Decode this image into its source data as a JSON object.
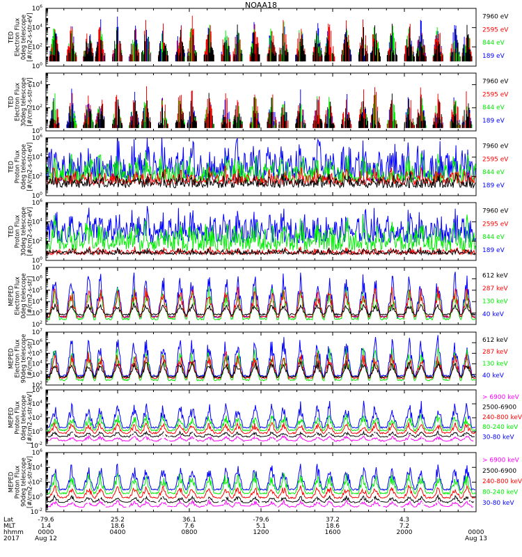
{
  "title": "NOAA18",
  "colors": {
    "black": "#000000",
    "red": "#ff0000",
    "green": "#00ee00",
    "blue": "#0000ff",
    "magenta": "#ff00ff"
  },
  "chart_data": [
    {
      "type": "line",
      "ylabel_lines": [
        "TED",
        "Electron Flux",
        "0deg telescope",
        "[#/cm2-s-str-eV]"
      ],
      "y_scale": "log",
      "ylim": [
        1,
        1000000
      ],
      "ytick_exponents": [
        0,
        2,
        4,
        6
      ],
      "legend": [
        {
          "text": "7960 eV",
          "color": "#000000"
        },
        {
          "text": "2595 eV",
          "color": "#ff0000"
        },
        {
          "text": "844 eV",
          "color": "#00ee00"
        },
        {
          "text": "189 eV",
          "color": "#0000ff"
        }
      ],
      "series": [
        {
          "color": "#0000ff",
          "base": 1,
          "amp": 4.2
        },
        {
          "color": "#00ee00",
          "base": 1,
          "amp": 4.0
        },
        {
          "color": "#ff0000",
          "base": 1,
          "amp": 4.6
        },
        {
          "color": "#000000",
          "base": 1,
          "amp": 3.6
        }
      ],
      "mode": "sparse"
    },
    {
      "type": "line",
      "ylabel_lines": [
        "TED",
        "Electron Flux",
        "30deg telescope",
        "[#/cm2-s-str-eV]"
      ],
      "y_scale": "log",
      "ylim": [
        1,
        100000
      ],
      "ytick_exponents": [
        0,
        2,
        4
      ],
      "legend": [
        {
          "text": "7960 eV",
          "color": "#000000"
        },
        {
          "text": "2595 eV",
          "color": "#ff0000"
        },
        {
          "text": "844 eV",
          "color": "#00ee00"
        },
        {
          "text": "189 eV",
          "color": "#0000ff"
        }
      ],
      "series": [
        {
          "color": "#0000ff",
          "base": 0.5,
          "amp": 3.2
        },
        {
          "color": "#00ee00",
          "base": 0.5,
          "amp": 3.0
        },
        {
          "color": "#ff0000",
          "base": 0.5,
          "amp": 3.8
        },
        {
          "color": "#000000",
          "base": 0.5,
          "amp": 2.8
        }
      ],
      "mode": "sparse"
    },
    {
      "type": "line",
      "ylabel_lines": [
        "TED",
        "Proton Flux",
        "0deg telescope",
        "[#/cm2-s-str-eV]"
      ],
      "y_scale": "log",
      "ylim": [
        1,
        1000000
      ],
      "ytick_exponents": [
        0,
        2,
        4,
        6
      ],
      "legend": [
        {
          "text": "7960 eV",
          "color": "#000000"
        },
        {
          "text": "2595 eV",
          "color": "#ff0000"
        },
        {
          "text": "844 eV",
          "color": "#00ee00"
        },
        {
          "text": "189 eV",
          "color": "#0000ff"
        }
      ],
      "series": [
        {
          "color": "#0000ff",
          "base": 1.5,
          "amp": 3.5
        },
        {
          "color": "#00ee00",
          "base": 1.3,
          "amp": 2.4
        },
        {
          "color": "#ff0000",
          "base": 1.1,
          "amp": 1.4
        },
        {
          "color": "#000000",
          "base": 0.8,
          "amp": 1.2
        }
      ],
      "mode": "dense"
    },
    {
      "type": "line",
      "ylabel_lines": [
        "TED",
        "Proton Flux",
        "30deg telescope",
        "[#/cm2-s-str-eV]"
      ],
      "y_scale": "log",
      "ylim": [
        1,
        1000000
      ],
      "ytick_exponents": [
        0,
        2,
        4,
        6
      ],
      "legend": [
        {
          "text": "7960 eV",
          "color": "#000000"
        },
        {
          "text": "2595 eV",
          "color": "#ff0000"
        },
        {
          "text": "844 eV",
          "color": "#00ee00"
        },
        {
          "text": "189 eV",
          "color": "#0000ff"
        }
      ],
      "series": [
        {
          "color": "#0000ff",
          "base": 1.8,
          "amp": 3.0
        },
        {
          "color": "#00ee00",
          "base": 1.0,
          "amp": 2.6
        },
        {
          "color": "#ff0000",
          "base": 0.6,
          "amp": 0.6
        },
        {
          "color": "#000000",
          "base": 0.6,
          "amp": 0.5
        }
      ],
      "mode": "dense"
    },
    {
      "type": "line",
      "ylabel_lines": [
        "MEPED",
        "Electron Flux",
        "0deg telescope",
        "[#/cm2-s-str]"
      ],
      "y_scale": "log",
      "ylim": [
        100,
        10000000
      ],
      "ytick_exponents": [
        2,
        3,
        4,
        5,
        6,
        7
      ],
      "legend": [
        {
          "text": "612 keV",
          "color": "#000000"
        },
        {
          "text": "287 keV",
          "color": "#ff0000"
        },
        {
          "text": "130 keV",
          "color": "#00ee00"
        },
        {
          "text": "40 keV",
          "color": "#0000ff"
        }
      ],
      "series": [
        {
          "color": "#0000ff",
          "base": 2.6,
          "amp": 4.2
        },
        {
          "color": "#00ee00",
          "base": 2.4,
          "amp": 3.0
        },
        {
          "color": "#ff0000",
          "base": 2.6,
          "amp": 2.8
        },
        {
          "color": "#000000",
          "base": 2.8,
          "amp": 1.0
        }
      ],
      "mode": "peaks"
    },
    {
      "type": "line",
      "ylabel_lines": [
        "MEPED",
        "Electron Flux",
        "90deg telescope",
        "[#/cm2-s-str]"
      ],
      "y_scale": "log",
      "ylim": [
        100,
        10000000
      ],
      "ytick_exponents": [
        2,
        3,
        4,
        5,
        6,
        7
      ],
      "legend": [
        {
          "text": "612 keV",
          "color": "#000000"
        },
        {
          "text": "287 keV",
          "color": "#ff0000"
        },
        {
          "text": "130 keV",
          "color": "#00ee00"
        },
        {
          "text": "40 keV",
          "color": "#0000ff"
        }
      ],
      "series": [
        {
          "color": "#0000ff",
          "base": 2.8,
          "amp": 4.0
        },
        {
          "color": "#00ee00",
          "base": 2.4,
          "amp": 3.2
        },
        {
          "color": "#ff0000",
          "base": 2.6,
          "amp": 2.6
        },
        {
          "color": "#000000",
          "base": 2.7,
          "amp": 1.6
        }
      ],
      "mode": "peaks"
    },
    {
      "type": "line",
      "ylabel_lines": [
        "MEPED",
        "Proton Flux",
        "0deg telescope",
        "[#/cm2-s-str-keV]"
      ],
      "y_scale": "log",
      "ylim": [
        0.01,
        1000000
      ],
      "ytick_exponents": [
        -2,
        0,
        2,
        4,
        6
      ],
      "legend": [
        {
          "text": "> 6900 keV",
          "color": "#ff00ff"
        },
        {
          "text": "2500-6900",
          "color": "#000000"
        },
        {
          "text": "240-800 keV",
          "color": "#ff0000"
        },
        {
          "text": "80-240 keV",
          "color": "#00ee00"
        },
        {
          "text": "30-80 keV",
          "color": "#0000ff"
        }
      ],
      "series": [
        {
          "color": "#0000ff",
          "base": 0.5,
          "amp": 4.0
        },
        {
          "color": "#00ee00",
          "base": 0.1,
          "amp": 2.6
        },
        {
          "color": "#ff0000",
          "base": -0.3,
          "amp": 1.6
        },
        {
          "color": "#000000",
          "base": -0.8,
          "amp": 0.8
        },
        {
          "color": "#ff00ff",
          "base": -1.4,
          "amp": 0.8
        }
      ],
      "mode": "proton"
    },
    {
      "type": "line",
      "ylabel_lines": [
        "MEPED",
        "Proton Flux",
        "90deg telescope",
        "[#/cm2-s-str-keV]"
      ],
      "y_scale": "log",
      "ylim": [
        0.01,
        1000000
      ],
      "ytick_exponents": [
        -2,
        0,
        2,
        4,
        6
      ],
      "legend": [
        {
          "text": "> 6900 keV",
          "color": "#ff00ff"
        },
        {
          "text": "2500-6900",
          "color": "#000000"
        },
        {
          "text": "240-800 keV",
          "color": "#ff0000"
        },
        {
          "text": "80-240 keV",
          "color": "#00ee00"
        },
        {
          "text": "30-80 keV",
          "color": "#0000ff"
        }
      ],
      "series": [
        {
          "color": "#0000ff",
          "base": 0.9,
          "amp": 3.8
        },
        {
          "color": "#00ee00",
          "base": 0.4,
          "amp": 3.0
        },
        {
          "color": "#ff0000",
          "base": -0.2,
          "amp": 1.8
        },
        {
          "color": "#000000",
          "base": -0.8,
          "amp": 0.9
        },
        {
          "color": "#ff00ff",
          "base": -1.4,
          "amp": 0.9
        }
      ],
      "mode": "proton"
    }
  ],
  "axis_rows": {
    "labels": [
      "Lat",
      "MLT",
      "hhmm",
      "2017"
    ],
    "ticks": [
      {
        "lat": "-79.6",
        "mlt": "1.4",
        "hhmm": "0000",
        "date": "Aug 12"
      },
      {
        "lat": "25.2",
        "mlt": "18.6",
        "hhmm": "0400",
        "date": ""
      },
      {
        "lat": "36.1",
        "mlt": "7.6",
        "hhmm": "0800",
        "date": ""
      },
      {
        "lat": "-79.6",
        "mlt": "5.1",
        "hhmm": "1200",
        "date": ""
      },
      {
        "lat": "37.2",
        "mlt": "18.6",
        "hhmm": "1600",
        "date": ""
      },
      {
        "lat": "4.3",
        "mlt": "7.2",
        "hhmm": "2000",
        "date": ""
      },
      {
        "lat": "",
        "mlt": "",
        "hhmm": "0000",
        "date": "Aug 13"
      }
    ]
  }
}
